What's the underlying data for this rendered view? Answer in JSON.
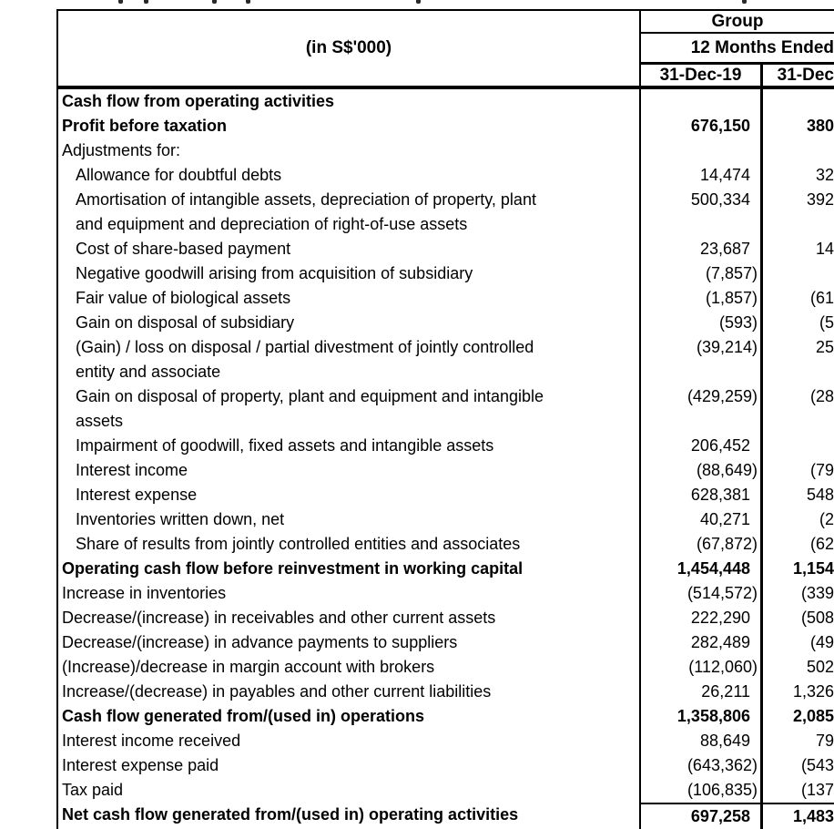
{
  "table": {
    "unit_label": "(in S$'000)",
    "header": {
      "group": "Group",
      "period": "12 Months Ended",
      "col_date_1": "31-Dec-19",
      "col_date_2_partial": "31-Dec"
    },
    "rows": [
      {
        "label_lines": [
          "Cash flow from operating activities"
        ],
        "bold": true,
        "indent": false,
        "v1": "",
        "v2": ""
      },
      {
        "label_lines": [
          "Profit before taxation"
        ],
        "bold": true,
        "indent": false,
        "v1": "676,150",
        "v2": "380"
      },
      {
        "label_lines": [
          "Adjustments for:"
        ],
        "bold": false,
        "indent": false,
        "v1": "",
        "v2": ""
      },
      {
        "label_lines": [
          "Allowance for doubtful debts"
        ],
        "bold": false,
        "indent": true,
        "v1": "14,474",
        "v2": "32"
      },
      {
        "label_lines": [
          "Amortisation of intangible assets, depreciation of property, plant",
          "and equipment and depreciation of right-of-use assets"
        ],
        "bold": false,
        "indent": true,
        "v1": "500,334",
        "v2": "392"
      },
      {
        "label_lines": [
          "Cost of share-based payment"
        ],
        "bold": false,
        "indent": true,
        "v1": "23,687",
        "v2": "14"
      },
      {
        "label_lines": [
          "Negative goodwill arising from acquisition of subsidiary"
        ],
        "bold": false,
        "indent": true,
        "v1": "(7,857)",
        "v2": ""
      },
      {
        "label_lines": [
          "Fair value of biological assets"
        ],
        "bold": false,
        "indent": true,
        "v1": "(1,857)",
        "v2": "(61"
      },
      {
        "label_lines": [
          "Gain on disposal of subsidiary"
        ],
        "bold": false,
        "indent": true,
        "v1": "(593)",
        "v2": "(5"
      },
      {
        "label_lines": [
          "(Gain) / loss on disposal / partial divestment of jointly controlled",
          "entity and associate"
        ],
        "bold": false,
        "indent": true,
        "v1": "(39,214)",
        "v2": "25"
      },
      {
        "label_lines": [
          "Gain on disposal of property, plant and equipment and intangible",
          "assets"
        ],
        "bold": false,
        "indent": true,
        "v1": "(429,259)",
        "v2": "(28"
      },
      {
        "label_lines": [
          "Impairment of goodwill, fixed assets and intangible assets"
        ],
        "bold": false,
        "indent": true,
        "v1": "206,452",
        "v2": ""
      },
      {
        "label_lines": [
          "Interest income"
        ],
        "bold": false,
        "indent": true,
        "v1": "(88,649)",
        "v2": "(79"
      },
      {
        "label_lines": [
          "Interest expense"
        ],
        "bold": false,
        "indent": true,
        "v1": "628,381",
        "v2": "548"
      },
      {
        "label_lines": [
          "Inventories written down, net"
        ],
        "bold": false,
        "indent": true,
        "v1": "40,271",
        "v2": "(2"
      },
      {
        "label_lines": [
          "Share of results from jointly controlled entities and associates"
        ],
        "bold": false,
        "indent": true,
        "v1": "(67,872)",
        "v2": "(62"
      },
      {
        "label_lines": [
          "Operating cash flow before reinvestment in working capital"
        ],
        "bold": true,
        "indent": false,
        "v1": "1,454,448",
        "v2": "1,154"
      },
      {
        "label_lines": [
          "Increase in inventories"
        ],
        "bold": false,
        "indent": false,
        "v1": "(514,572)",
        "v2": "(339"
      },
      {
        "label_lines": [
          "Decrease/(increase) in receivables and other current assets"
        ],
        "bold": false,
        "indent": false,
        "v1": "222,290",
        "v2": "(508"
      },
      {
        "label_lines": [
          "Decrease/(increase) in advance payments to suppliers"
        ],
        "bold": false,
        "indent": false,
        "v1": "282,489",
        "v2": "(49"
      },
      {
        "label_lines": [
          "(Increase)/decrease in margin account with brokers"
        ],
        "bold": false,
        "indent": false,
        "v1": "(112,060)",
        "v2": "502"
      },
      {
        "label_lines": [
          "Increase/(decrease) in payables and other current liabilities"
        ],
        "bold": false,
        "indent": false,
        "v1": "26,211",
        "v2": "1,326"
      },
      {
        "label_lines": [
          "Cash flow generated from/(used in) operations"
        ],
        "bold": true,
        "indent": false,
        "v1": "1,358,806",
        "v2": "2,085"
      },
      {
        "label_lines": [
          "Interest income received"
        ],
        "bold": false,
        "indent": false,
        "v1": "88,649",
        "v2": "79"
      },
      {
        "label_lines": [
          "Interest expense paid"
        ],
        "bold": false,
        "indent": false,
        "v1": "(643,362)",
        "v2": "(543"
      },
      {
        "label_lines": [
          "Tax paid"
        ],
        "bold": false,
        "indent": false,
        "v1": "(106,835)",
        "v2": "(137"
      },
      {
        "label_lines": [
          "Net cash flow generated from/(used in) operating activities"
        ],
        "bold": true,
        "indent": false,
        "v1": "697,258",
        "v2": "1,483",
        "rule_above_values": true
      }
    ]
  }
}
